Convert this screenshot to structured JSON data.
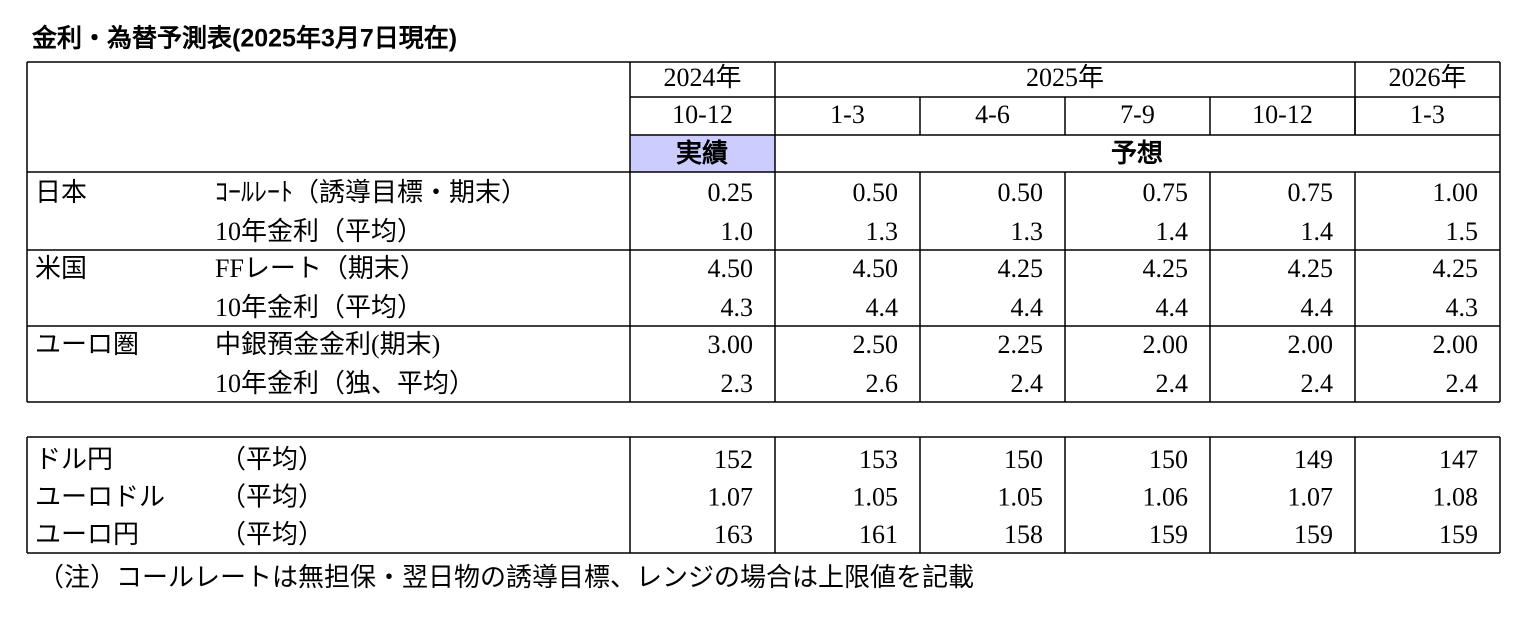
{
  "title": "金利・為替予測表(2025年3月7日現在)",
  "table": {
    "header": {
      "years": [
        "2024年",
        "2025年",
        "2026年"
      ],
      "quarters": [
        "10-12",
        "1-3",
        "4-6",
        "7-9",
        "10-12",
        "1-3"
      ],
      "actual": "実績",
      "forecast": "予想"
    },
    "groups": [
      {
        "region": "日本",
        "rows": [
          {
            "label": "ｺｰﾙﾚｰﾄ（誘導目標・期末）",
            "values": [
              "0.25",
              "0.50",
              "0.50",
              "0.75",
              "0.75",
              "1.00"
            ]
          },
          {
            "label": "10年金利（平均）",
            "values": [
              "1.0",
              "1.3",
              "1.3",
              "1.4",
              "1.4",
              "1.5"
            ]
          }
        ]
      },
      {
        "region": "米国",
        "rows": [
          {
            "label": "FFレート（期末）",
            "values": [
              "4.50",
              "4.50",
              "4.25",
              "4.25",
              "4.25",
              "4.25"
            ]
          },
          {
            "label": "10年金利（平均）",
            "values": [
              "4.3",
              "4.4",
              "4.4",
              "4.4",
              "4.4",
              "4.3"
            ]
          }
        ]
      },
      {
        "region": "ユーロ圏",
        "rows": [
          {
            "label": "中銀預金金利(期末)",
            "values": [
              "3.00",
              "2.50",
              "2.25",
              "2.00",
              "2.00",
              "2.00"
            ]
          },
          {
            "label": "10年金利（独、平均）",
            "values": [
              "2.3",
              "2.6",
              "2.4",
              "2.4",
              "2.4",
              "2.4"
            ]
          }
        ]
      }
    ]
  },
  "fx": {
    "rows": [
      {
        "label": "ドル円",
        "note": "（平均）",
        "values": [
          "152",
          "153",
          "150",
          "150",
          "149",
          "147"
        ]
      },
      {
        "label": "ユーロドル",
        "note": "（平均）",
        "values": [
          "1.07",
          "1.05",
          "1.05",
          "1.06",
          "1.07",
          "1.08"
        ]
      },
      {
        "label": "ユーロ円",
        "note": "（平均）",
        "values": [
          "163",
          "161",
          "158",
          "159",
          "159",
          "159"
        ]
      }
    ]
  },
  "note": "（注）コールレートは無担保・翌日物の誘導目標、レンジの場合は上限値を記載"
}
